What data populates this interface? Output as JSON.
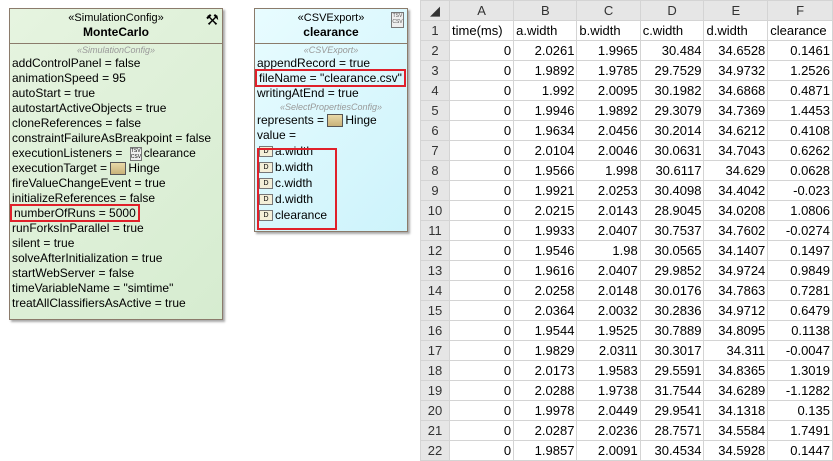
{
  "monte_carlo": {
    "stereotype": "«SimulationConfig»",
    "name": "MonteCarlo",
    "section": "«SimulationConfig»",
    "icon": "tools-icon",
    "properties": [
      "addControlPanel = false",
      "animationSpeed = 95",
      "autoStart = true",
      "autostartActiveObjects = true",
      "cloneReferences = false",
      "constraintFailureAsBreakpoint = false",
      "executionListeners = ",
      "executionTarget = ",
      "fireValueChangeEvent = true",
      "initializeReferences = false",
      "numberOfRuns = 5000",
      "runForksInParallel = true",
      "silent = true",
      "solveAfterInitialization = true",
      "startWebServer = false",
      "timeVariableName = \"simtime\"",
      "treatAllClassifiersAsActive = true"
    ],
    "execution_listener_value": "clearance",
    "execution_target_value": "Hinge"
  },
  "csv_export": {
    "stereotype": "«CSVExport»",
    "name": "clearance",
    "section1": "«CSVExport»",
    "append_record": "appendRecord = true",
    "file_name": "fileName = \"clearance.csv\"",
    "writing_at_end": "writingAtEnd = true",
    "section2": "«SelectPropertiesConfig»",
    "represents_label": "represents = ",
    "represents_value": "Hinge",
    "value_label": "value =",
    "values": [
      "a.width",
      "b.width",
      "c.width",
      "d.width",
      "clearance"
    ]
  },
  "spreadsheet": {
    "columns": [
      "A",
      "B",
      "C",
      "D",
      "E",
      "F"
    ],
    "rows": [
      [
        "time(ms)",
        "a.width",
        "b.width",
        "c.width",
        "d.width",
        "clearance"
      ],
      [
        "0",
        "2.0261",
        "1.9965",
        "30.484",
        "34.6528",
        "0.1461"
      ],
      [
        "0",
        "1.9892",
        "1.9785",
        "29.7529",
        "34.9732",
        "1.2526"
      ],
      [
        "0",
        "1.992",
        "2.0095",
        "30.1982",
        "34.6868",
        "0.4871"
      ],
      [
        "0",
        "1.9946",
        "1.9892",
        "29.3079",
        "34.7369",
        "1.4453"
      ],
      [
        "0",
        "1.9634",
        "2.0456",
        "30.2014",
        "34.6212",
        "0.4108"
      ],
      [
        "0",
        "2.0104",
        "2.0046",
        "30.0631",
        "34.7043",
        "0.6262"
      ],
      [
        "0",
        "1.9566",
        "1.998",
        "30.6117",
        "34.629",
        "0.0628"
      ],
      [
        "0",
        "1.9921",
        "2.0253",
        "30.4098",
        "34.4042",
        "-0.023"
      ],
      [
        "0",
        "2.0215",
        "2.0143",
        "28.9045",
        "34.0208",
        "1.0806"
      ],
      [
        "0",
        "1.9933",
        "2.0407",
        "30.7537",
        "34.7602",
        "-0.0274"
      ],
      [
        "0",
        "1.9546",
        "1.98",
        "30.0565",
        "34.1407",
        "0.1497"
      ],
      [
        "0",
        "1.9616",
        "2.0407",
        "29.9852",
        "34.9724",
        "0.9849"
      ],
      [
        "0",
        "2.0258",
        "2.0148",
        "30.0176",
        "34.7863",
        "0.7281"
      ],
      [
        "0",
        "2.0364",
        "2.0032",
        "30.2836",
        "34.9712",
        "0.6479"
      ],
      [
        "0",
        "1.9544",
        "1.9525",
        "30.7889",
        "34.8095",
        "0.1138"
      ],
      [
        "0",
        "1.9829",
        "2.0311",
        "30.3017",
        "34.311",
        "-0.0047"
      ],
      [
        "0",
        "2.0173",
        "1.9583",
        "29.5591",
        "34.8365",
        "1.3019"
      ],
      [
        "0",
        "2.0288",
        "1.9738",
        "31.7544",
        "34.6289",
        "-1.1282"
      ],
      [
        "0",
        "1.9978",
        "2.0449",
        "29.9541",
        "34.1318",
        "0.135"
      ],
      [
        "0",
        "2.0287",
        "2.0236",
        "28.7571",
        "34.5584",
        "1.7491"
      ],
      [
        "0",
        "1.9857",
        "2.0091",
        "30.4534",
        "34.5928",
        "0.1447"
      ]
    ]
  }
}
